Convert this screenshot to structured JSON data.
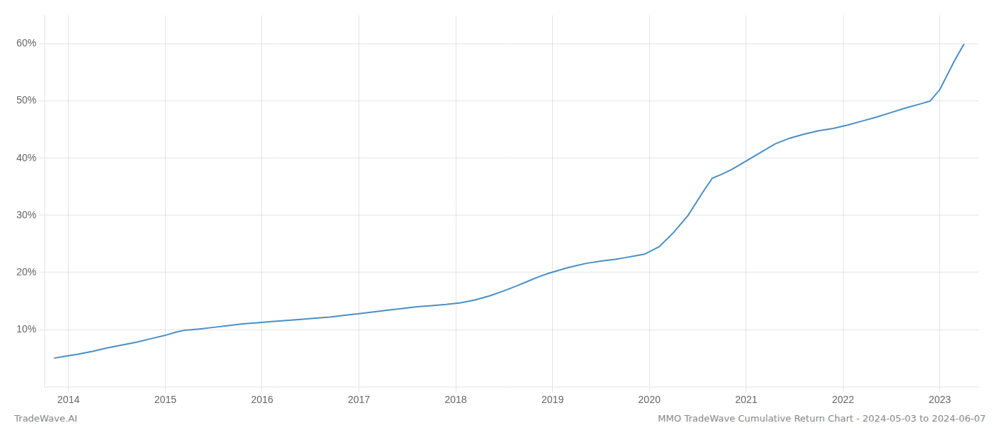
{
  "chart_data": {
    "type": "line",
    "color": "#4a90c4",
    "grid": true,
    "annotations": [
      "TradeWave.AI",
      "MMO TradeWave Cumulative Return Chart - 2024-05-03 to 2024-06-07"
    ],
    "x": [
      2013.85,
      2013.95,
      2014.1,
      2014.25,
      2014.4,
      2014.55,
      2014.7,
      2014.85,
      2015.0,
      2015.1,
      2015.2,
      2015.35,
      2015.5,
      2015.65,
      2015.8,
      2015.95,
      2016.1,
      2016.25,
      2016.4,
      2016.55,
      2016.7,
      2016.85,
      2017.0,
      2017.15,
      2017.3,
      2017.45,
      2017.6,
      2017.75,
      2017.9,
      2018.05,
      2018.2,
      2018.35,
      2018.5,
      2018.65,
      2018.75,
      2018.85,
      2018.95,
      2019.05,
      2019.15,
      2019.25,
      2019.35,
      2019.5,
      2019.65,
      2019.75,
      2019.85,
      2019.95,
      2020.1,
      2020.25,
      2020.4,
      2020.55,
      2020.65,
      2020.75,
      2020.85,
      2021.0,
      2021.15,
      2021.3,
      2021.45,
      2021.6,
      2021.75,
      2021.9,
      2022.05,
      2022.2,
      2022.35,
      2022.5,
      2022.65,
      2022.8,
      2022.9,
      2023.0,
      2023.15,
      2023.25
    ],
    "values": [
      5.0,
      5.3,
      5.7,
      6.2,
      6.8,
      7.3,
      7.8,
      8.4,
      9.0,
      9.5,
      9.9,
      10.1,
      10.4,
      10.7,
      11.0,
      11.2,
      11.4,
      11.6,
      11.8,
      12.0,
      12.2,
      12.5,
      12.8,
      13.1,
      13.4,
      13.7,
      14.0,
      14.2,
      14.4,
      14.7,
      15.2,
      15.9,
      16.8,
      17.8,
      18.5,
      19.2,
      19.8,
      20.3,
      20.8,
      21.2,
      21.6,
      22.0,
      22.3,
      22.6,
      22.9,
      23.2,
      24.5,
      27.0,
      30.0,
      34.0,
      36.5,
      37.2,
      38.0,
      39.5,
      41.0,
      42.5,
      43.5,
      44.2,
      44.8,
      45.2,
      45.8,
      46.5,
      47.2,
      48.0,
      48.8,
      49.5,
      50.0,
      52.0,
      57.0,
      60.0
    ],
    "xlim": [
      2013.75,
      2023.4
    ],
    "xticks": [
      2014,
      2015,
      2016,
      2017,
      2018,
      2019,
      2020,
      2021,
      2022,
      2023
    ],
    "ylim": [
      0,
      65
    ],
    "yticks": [
      {
        "value": 10,
        "label": "10%"
      },
      {
        "value": 20,
        "label": "20%"
      },
      {
        "value": 30,
        "label": "30%"
      },
      {
        "value": 40,
        "label": "40%"
      },
      {
        "value": 50,
        "label": "50%"
      },
      {
        "value": 60,
        "label": "60%"
      }
    ]
  }
}
